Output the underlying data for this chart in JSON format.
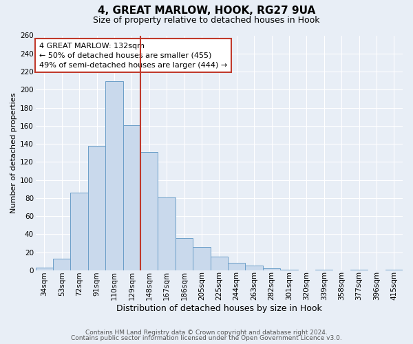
{
  "title": "4, GREAT MARLOW, HOOK, RG27 9UA",
  "subtitle": "Size of property relative to detached houses in Hook",
  "xlabel": "Distribution of detached houses by size in Hook",
  "ylabel": "Number of detached properties",
  "bin_labels": [
    "34sqm",
    "53sqm",
    "72sqm",
    "91sqm",
    "110sqm",
    "129sqm",
    "148sqm",
    "167sqm",
    "186sqm",
    "205sqm",
    "225sqm",
    "244sqm",
    "263sqm",
    "282sqm",
    "301sqm",
    "320sqm",
    "339sqm",
    "358sqm",
    "377sqm",
    "396sqm",
    "415sqm"
  ],
  "bar_heights": [
    3,
    13,
    86,
    138,
    209,
    161,
    131,
    81,
    36,
    26,
    15,
    8,
    5,
    2,
    1,
    0,
    1,
    0,
    1,
    0,
    1
  ],
  "bar_color": "#c9d9ec",
  "bar_edge_color": "#6b9ec8",
  "vline_x_index": 5,
  "vline_color": "#c0392b",
  "ylim": [
    0,
    260
  ],
  "yticks": [
    0,
    20,
    40,
    60,
    80,
    100,
    120,
    140,
    160,
    180,
    200,
    220,
    240,
    260
  ],
  "annotation_title": "4 GREAT MARLOW: 132sqm",
  "annotation_line1": "← 50% of detached houses are smaller (455)",
  "annotation_line2": "49% of semi-detached houses are larger (444) →",
  "annotation_box_color": "#c0392b",
  "footer_line1": "Contains HM Land Registry data © Crown copyright and database right 2024.",
  "footer_line2": "Contains public sector information licensed under the Open Government Licence v3.0.",
  "background_color": "#e8eef6",
  "plot_bg_color": "#e8eef6",
  "grid_color": "#ffffff",
  "title_fontsize": 11,
  "subtitle_fontsize": 9,
  "xlabel_fontsize": 9,
  "ylabel_fontsize": 8,
  "footer_fontsize": 6.5,
  "tick_fontsize": 7.5,
  "annot_fontsize": 8
}
